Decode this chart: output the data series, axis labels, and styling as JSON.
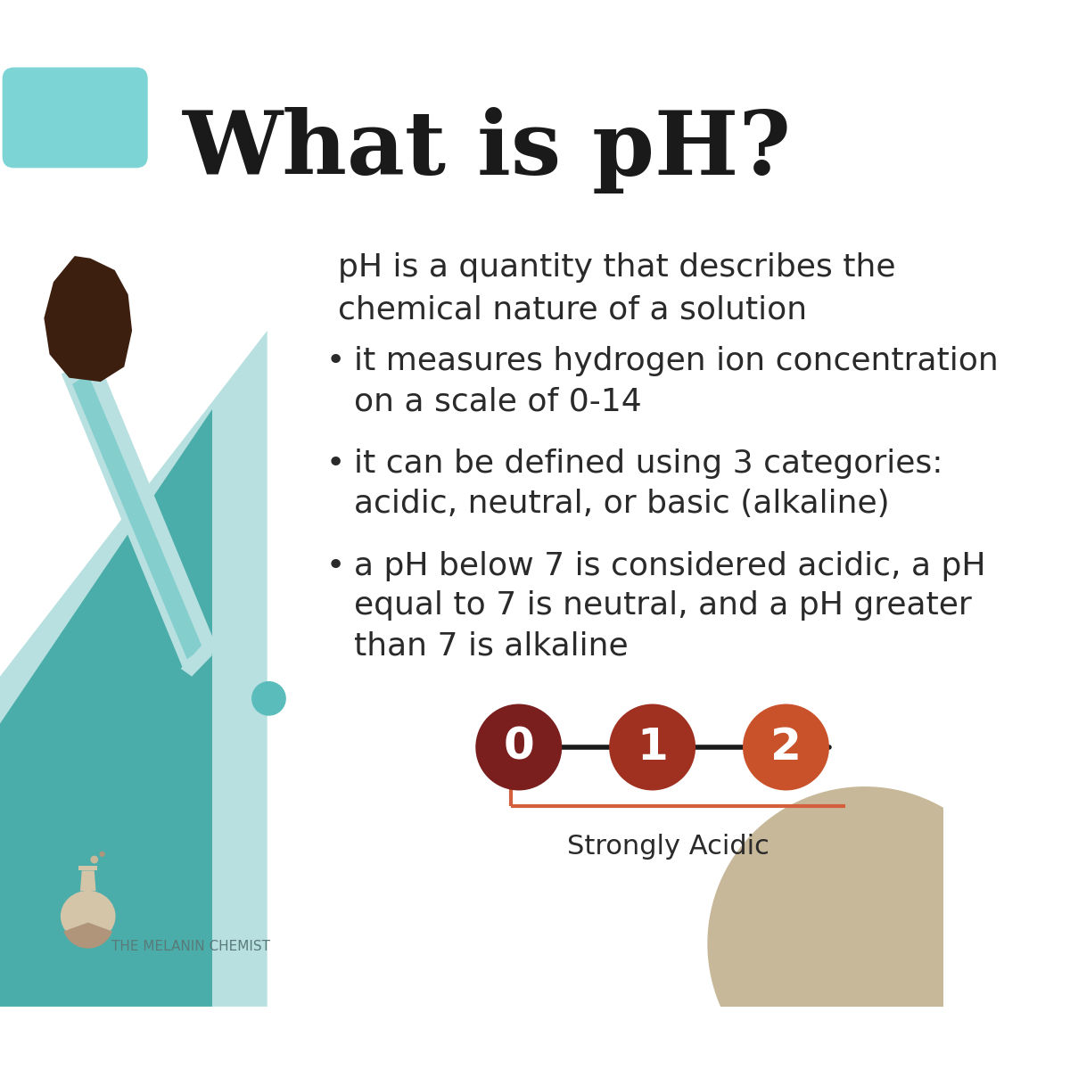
{
  "title": "What is pH?",
  "background_color": "#ffffff",
  "teal_dark": "#4aadaa",
  "teal_light": "#b8e0e0",
  "teal_medium": "#85cece",
  "brown_dark": "#3d1f10",
  "bullet_text1_line1": "it measures hydrogen ion concentration",
  "bullet_text1_line2": "on a scale of 0-14",
  "bullet_text2_line1": "it can be defined using 3 categories:",
  "bullet_text2_line2": "acidic, neutral, or basic (alkaline)",
  "bullet_text3_line1": "a pH below 7 is considered acidic, a pH",
  "bullet_text3_line2": "equal to 7 is neutral, and a pH greater",
  "bullet_text3_line3": "than 7 is alkaline",
  "description": "pH is a quantity that describes the\nchemical nature of a solution",
  "circle_colors": [
    "#7a1e1e",
    "#a03020",
    "#c9522a"
  ],
  "circle_labels": [
    "0",
    "1",
    "2"
  ],
  "line_color": "#1a1a1a",
  "bracket_color": "#d45f3c",
  "strongly_acidic_label": "Strongly Acidic",
  "brand_text": "THE MELANIN CHEMIST",
  "beige_circle_color": "#c8b89a",
  "teal_circle_color": "#5bbcbc",
  "corner_rect_color": "#7dd4d4",
  "flask_body_color": "#d4c4a8",
  "flask_shadow_color": "#b0957a",
  "title_fontsize": 72,
  "desc_fontsize": 26,
  "bullet_fontsize": 26,
  "brand_fontsize": 11,
  "circle_label_fontsize": 36,
  "strongly_acidic_fontsize": 22
}
